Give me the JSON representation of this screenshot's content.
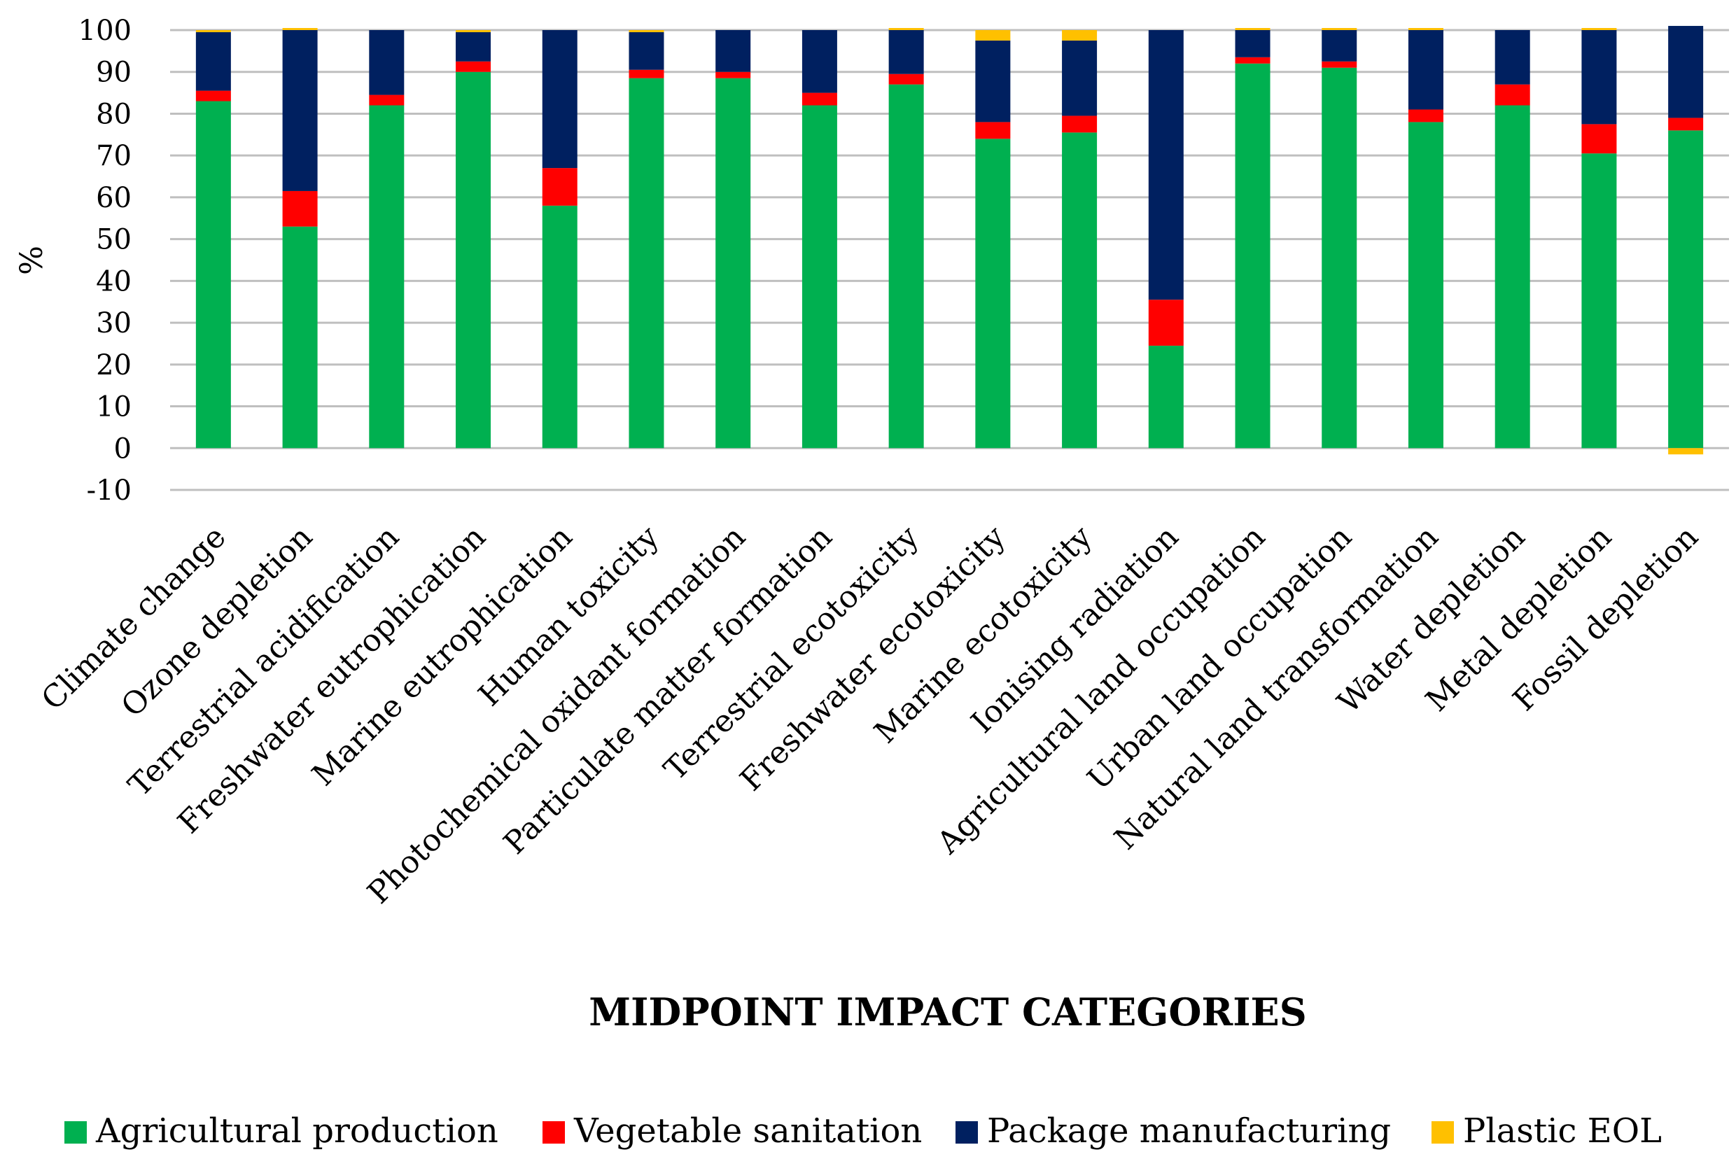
{
  "chart_data": {
    "type": "bar",
    "stacked": true,
    "title": "",
    "xlabel": "MIDPOINT IMPACT CATEGORIES",
    "ylabel": "%",
    "ylim": [
      -10,
      100
    ],
    "yticks": [
      -10,
      0,
      10,
      20,
      30,
      40,
      50,
      60,
      70,
      80,
      90,
      100
    ],
    "grid": true,
    "legend_position": "bottom",
    "categories": [
      "Climate change",
      "Ozone depletion",
      "Terrestrial acidification",
      "Freshwater eutrophication",
      "Marine eutrophication",
      "Human toxicity",
      "Photochemical oxidant formation",
      "Particulate matter formation",
      "Terrestrial ecotoxicity",
      "Freshwater ecotoxicity",
      "Marine ecotoxicity",
      "Ionising radiation",
      "Agricultural land occupation",
      "Urban land occupation",
      "Natural land transformation",
      "Water depletion",
      "Metal depletion",
      "Fossil depletion"
    ],
    "series": [
      {
        "name": "Agricultural production",
        "color": "#00b050",
        "values": [
          83,
          53,
          82,
          90,
          58,
          88.5,
          88.5,
          82,
          87,
          74,
          75.5,
          24.5,
          92,
          91,
          78,
          82,
          70.5,
          76
        ]
      },
      {
        "name": "Vegetable sanitation",
        "color": "#ff0000",
        "values": [
          2.5,
          8.5,
          2.5,
          2.5,
          9,
          2,
          1.5,
          3,
          2.5,
          4,
          4,
          11,
          1.5,
          1.5,
          3,
          5,
          7,
          3
        ]
      },
      {
        "name": "Package manufacturing",
        "color": "#002060",
        "values": [
          14,
          38.5,
          15.5,
          7,
          33,
          9,
          10,
          15,
          10.5,
          19.5,
          18,
          64.5,
          6.5,
          7.5,
          19,
          13,
          22.5,
          22
        ]
      },
      {
        "name": "Plastic EOL",
        "color": "#ffc000",
        "values": [
          0.5,
          0.5,
          0,
          0.5,
          0,
          0.5,
          0,
          0,
          0.5,
          2.5,
          2.5,
          0,
          0.5,
          0.5,
          0.5,
          0,
          0.5,
          -1.5
        ]
      }
    ]
  }
}
